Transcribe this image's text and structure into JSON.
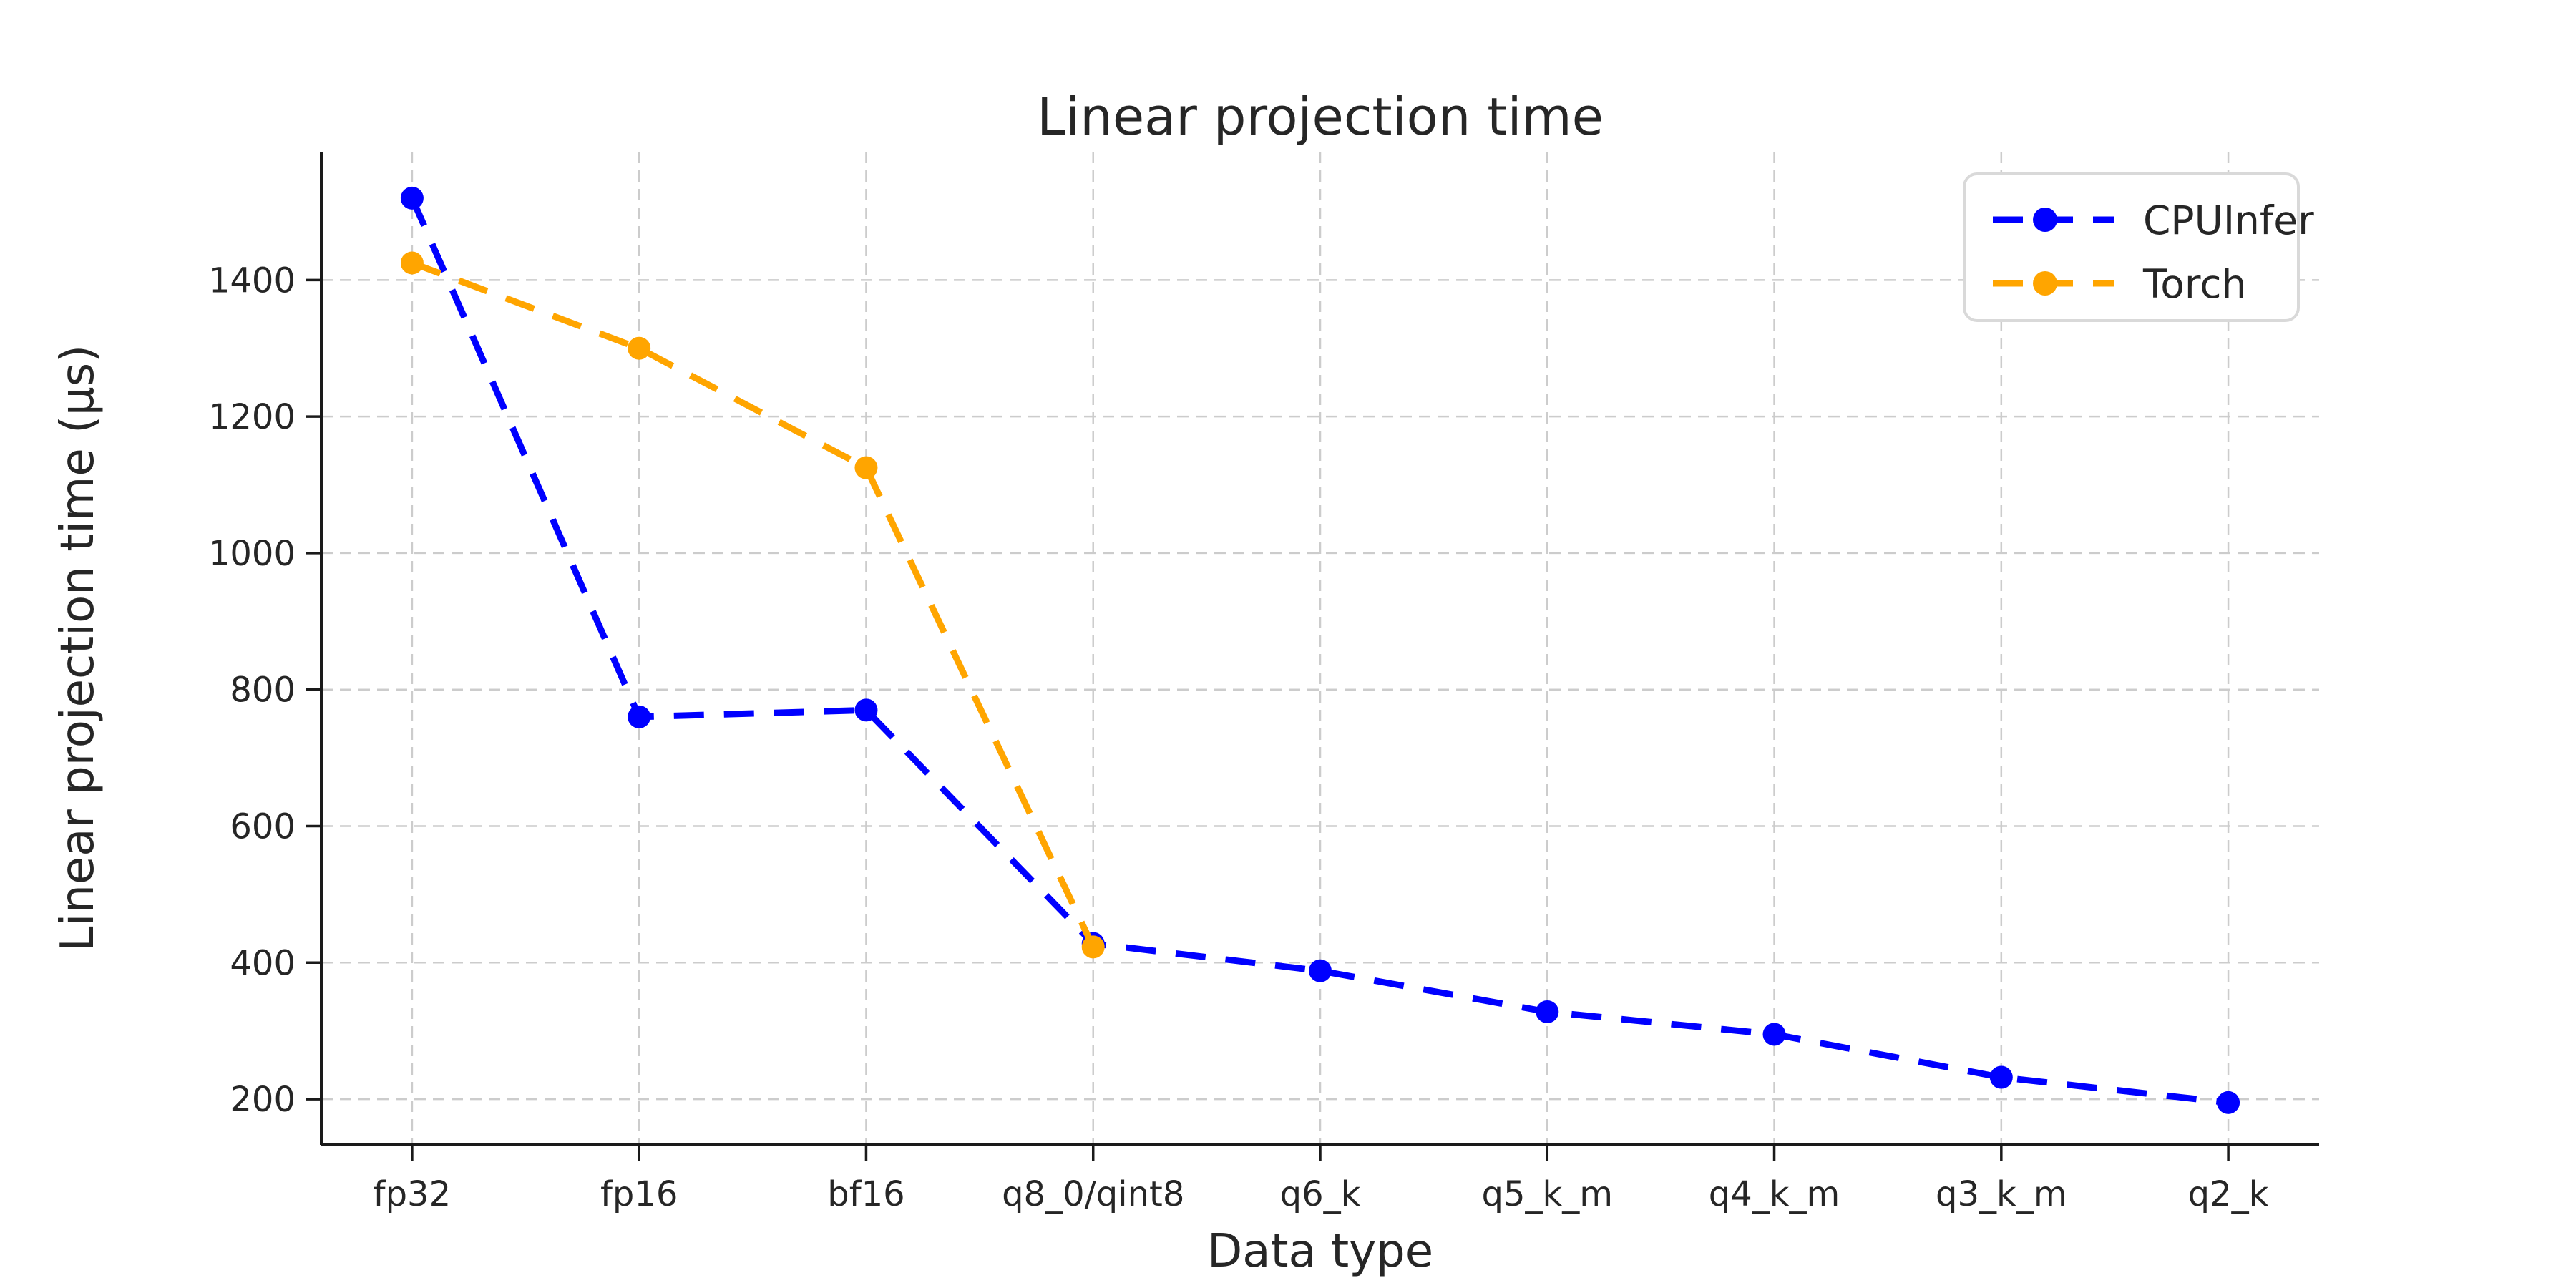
{
  "title": "Linear projection time",
  "xlabel": "Data type",
  "ylabel": "Linear projection time (µs)",
  "legend": {
    "position": "upper right",
    "items": [
      {
        "label": "CPUInfer",
        "color": "#0000ff"
      },
      {
        "label": "Torch",
        "color": "#ffa500"
      }
    ]
  },
  "colors": {
    "cpuinfer": "#0000ff",
    "torch": "#ffa500",
    "grid": "#cccccc",
    "spine": "#1a1a1a",
    "text": "#262626",
    "legend_border": "#d9d9d9",
    "background": "#ffffff"
  },
  "chart_data": {
    "type": "line",
    "categories": [
      "fp32",
      "fp16",
      "bf16",
      "q8_0/qint8",
      "q6_k",
      "q5_k_m",
      "q4_k_m",
      "q3_k_m",
      "q2_k"
    ],
    "series": [
      {
        "name": "CPUInfer",
        "color": "#0000ff",
        "line_style": "dashed",
        "marker": "circle",
        "values": [
          1520,
          760,
          770,
          428,
          388,
          328,
          295,
          232,
          195
        ]
      },
      {
        "name": "Torch",
        "color": "#ffa500",
        "line_style": "dashed",
        "marker": "circle",
        "values": [
          1425,
          1300,
          1125,
          423,
          null,
          null,
          null,
          null,
          null
        ]
      }
    ],
    "title": "Linear projection time",
    "xlabel": "Data type",
    "ylabel": "Linear projection time (µs)",
    "yticks": [
      200,
      400,
      600,
      800,
      1000,
      1200,
      1400
    ],
    "ylim": [
      133,
      1588
    ],
    "grid": true,
    "grid_style": "dashed",
    "legend_position": "upper right"
  }
}
